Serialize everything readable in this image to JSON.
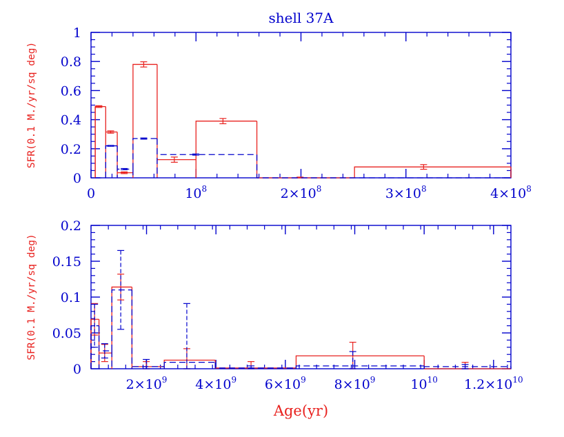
{
  "chart_data": [
    {
      "type": "bar",
      "title": "shell 37A",
      "xlabel": "",
      "ylabel": "SFR(0.1 M./yr/sq deg)",
      "xlim": [
        0,
        400000000
      ],
      "ylim": [
        0,
        1
      ],
      "x_ticks": [
        {
          "value": 0,
          "label": "0"
        },
        {
          "value": 100000000,
          "base": "10",
          "exp": "8"
        },
        {
          "value": 200000000,
          "base": "2×10",
          "exp": "8"
        },
        {
          "value": 300000000,
          "base": "3×10",
          "exp": "8"
        },
        {
          "value": 400000000,
          "base": "4×10",
          "exp": "8"
        }
      ],
      "y_ticks": [
        {
          "value": 0,
          "label": "0"
        },
        {
          "value": 0.2,
          "label": "0.2"
        },
        {
          "value": 0.4,
          "label": "0.4"
        },
        {
          "value": 0.6,
          "label": "0.6"
        },
        {
          "value": 0.8,
          "label": "0.8"
        },
        {
          "value": 1,
          "label": "1"
        }
      ],
      "series": [
        {
          "style": "solid",
          "color": "#e8211e",
          "bins": [
            {
              "x0": 4000000,
              "x1": 14000000,
              "y": 0.49,
              "err": 0.006
            },
            {
              "x0": 14000000,
              "x1": 25000000,
              "y": 0.315,
              "err": 0.008
            },
            {
              "x0": 25000000,
              "x1": 40000000,
              "y": 0.035,
              "err": 0.006
            },
            {
              "x0": 40000000,
              "x1": 63000000,
              "y": 0.78,
              "err": 0.018
            },
            {
              "x0": 63000000,
              "x1": 100000000,
              "y": 0.125,
              "err": 0.018
            },
            {
              "x0": 100000000,
              "x1": 158000000,
              "y": 0.39,
              "err": 0.018
            },
            {
              "x0": 158000000,
              "x1": 251000000,
              "y": 0.0,
              "err": 0.005
            },
            {
              "x0": 251000000,
              "x1": 400000000,
              "y": 0.075,
              "err": 0.016
            }
          ]
        },
        {
          "style": "dashed",
          "color": "#0000cc",
          "bins": [
            {
              "x0": 4000000,
              "x1": 14000000,
              "y": 0.0,
              "err": 0.0
            },
            {
              "x0": 14000000,
              "x1": 25000000,
              "y": 0.22,
              "err": 0.003
            },
            {
              "x0": 25000000,
              "x1": 40000000,
              "y": 0.06,
              "err": 0.004
            },
            {
              "x0": 40000000,
              "x1": 63000000,
              "y": 0.27,
              "err": 0.004
            },
            {
              "x0": 63000000,
              "x1": 158000000,
              "y": 0.16,
              "err": 0.004
            },
            {
              "x0": 158000000,
              "x1": 400000000,
              "y": 0.0,
              "err": 0.0
            }
          ]
        }
      ]
    },
    {
      "type": "bar",
      "title": "",
      "xlabel": "Age(yr)",
      "ylabel": "SFR(0.1 M./yr/sq deg)",
      "xlim": [
        400000000,
        12500000000
      ],
      "ylim": [
        0,
        0.2
      ],
      "x_ticks": [
        {
          "value": 2000000000,
          "base": "2×10",
          "exp": "9"
        },
        {
          "value": 4000000000,
          "base": "4×10",
          "exp": "9"
        },
        {
          "value": 6000000000,
          "base": "6×10",
          "exp": "9"
        },
        {
          "value": 8000000000,
          "base": "8×10",
          "exp": "9"
        },
        {
          "value": 10000000000,
          "base": "10",
          "exp": "10"
        },
        {
          "value": 12000000000,
          "base": "1.2×10",
          "exp": "10"
        }
      ],
      "y_ticks": [
        {
          "value": 0,
          "label": "0"
        },
        {
          "value": 0.05,
          "label": "0.05"
        },
        {
          "value": 0.1,
          "label": "0.1"
        },
        {
          "value": 0.15,
          "label": "0.15"
        },
        {
          "value": 0.2,
          "label": "0.2"
        }
      ],
      "series": [
        {
          "style": "solid",
          "color": "#e8211e",
          "bins": [
            {
              "x0": 400000000,
              "x1": 630000000,
              "y": 0.069,
              "err": 0.022
            },
            {
              "x0": 630000000,
              "x1": 1000000000,
              "y": 0.022,
              "err": 0.012
            },
            {
              "x0": 1000000000,
              "x1": 1580000000,
              "y": 0.114,
              "err": 0.018
            },
            {
              "x0": 1580000000,
              "x1": 2510000000,
              "y": 0.003,
              "err": 0.007
            },
            {
              "x0": 2510000000,
              "x1": 3980000000,
              "y": 0.012,
              "err": 0.016
            },
            {
              "x0": 3980000000,
              "x1": 6310000000,
              "y": 0.001,
              "err": 0.009
            },
            {
              "x0": 6310000000,
              "x1": 10000000000,
              "y": 0.018,
              "err": 0.019
            },
            {
              "x0": 10000000000,
              "x1": 12500000000,
              "y": 0.0,
              "err": 0.009
            }
          ]
        },
        {
          "style": "dashed",
          "color": "#0000cc",
          "bins": [
            {
              "x0": 400000000,
              "x1": 630000000,
              "y": 0.06,
              "err": 0.03
            },
            {
              "x0": 630000000,
              "x1": 1000000000,
              "y": 0.025,
              "err": 0.01
            },
            {
              "x0": 1000000000,
              "x1": 1580000000,
              "y": 0.11,
              "err": 0.055
            },
            {
              "x0": 1580000000,
              "x1": 2510000000,
              "y": 0.003,
              "err": 0.01
            },
            {
              "x0": 2510000000,
              "x1": 3980000000,
              "y": 0.009,
              "err": 0.082
            },
            {
              "x0": 3980000000,
              "x1": 6310000000,
              "y": 0.001,
              "err": 0.003
            },
            {
              "x0": 6310000000,
              "x1": 10000000000,
              "y": 0.004,
              "err": 0.02
            },
            {
              "x0": 10000000000,
              "x1": 12500000000,
              "y": 0.003,
              "err": 0.003
            }
          ]
        }
      ]
    }
  ]
}
